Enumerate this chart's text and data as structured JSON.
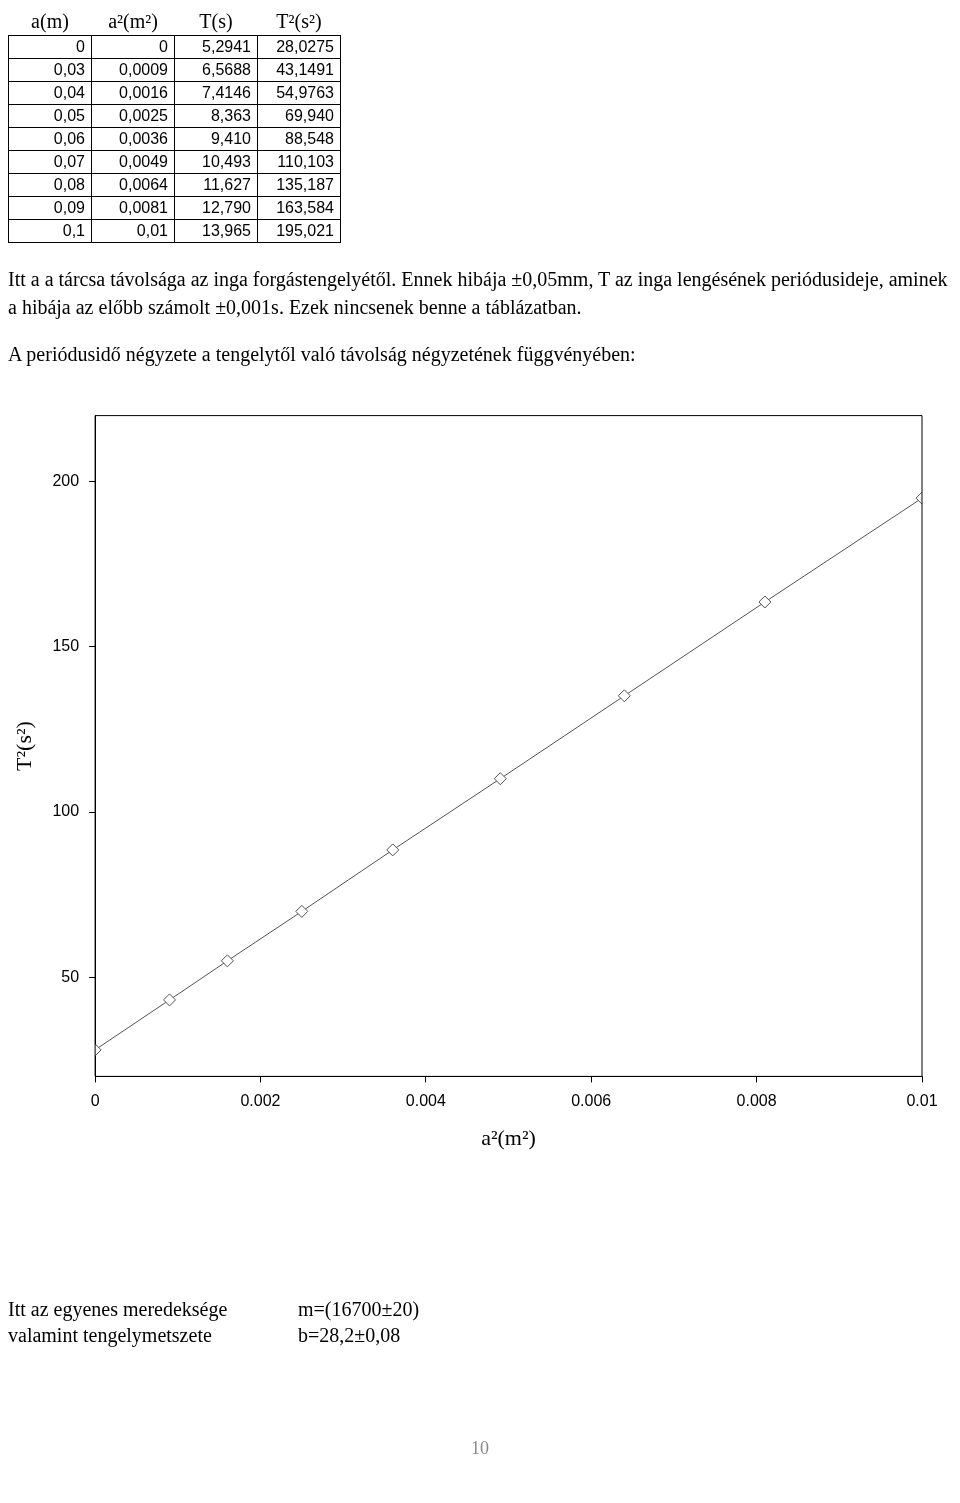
{
  "chart_data": {
    "type": "line",
    "title": "A periódusidő négyzete a tengelytől való távolság négyzetének függvényében:",
    "xlabel": "a²(m²)",
    "ylabel": "T²(s²)",
    "x": [
      0,
      0.0009,
      0.0016,
      0.0025,
      0.0036,
      0.0049,
      0.0064,
      0.0081,
      0.01
    ],
    "series": [
      {
        "color": "#555555",
        "values": [
          28.0275,
          43.1491,
          54.9763,
          69.94,
          88.548,
          110.103,
          135.187,
          163.584,
          195.021
        ]
      }
    ],
    "xlim": [
      0,
      0.01
    ],
    "xticks": [
      0,
      0.002,
      0.004,
      0.006,
      0.008,
      0.01
    ],
    "ylim": [
      20,
      220
    ],
    "yticks": [
      50,
      100,
      150,
      200
    ],
    "grid": false,
    "legend": false,
    "marker": "diamond",
    "line_style": "solid",
    "annotations": [
      "a(m)",
      "a²(m²)",
      "T(s)",
      "T²(s²)",
      "0",
      "0",
      "5,2941",
      "28,0275",
      "0,03",
      "0,0009",
      "6,5688",
      "43,1491",
      "0,04",
      "0,0016",
      "7,4146",
      "54,9763",
      "0,05",
      "0,0025",
      "8,363",
      "69,940",
      "0,06",
      "0,0036",
      "9,410",
      "88,548",
      "0,07",
      "0,0049",
      "10,493",
      "110,103",
      "0,08",
      "0,0064",
      "11,627",
      "135,187",
      "0,09",
      "0,0081",
      "12,790",
      "163,584",
      "0,1",
      "0,01",
      "13,965",
      "195,021",
      "Itt a a tárcsa távolsága az inga forgástengelyétől. Ennek hibája ±0,05mm, T az inga lengésének periódusideje, aminek a hibája az előbb számolt ±0,001s. Ezek nincsenek benne a táblázatban.",
      "Itt az egyenes meredeksége",
      "m=(16700±20)",
      "valamint tengelymetszete",
      "b=28,2±0,08",
      "10"
    ]
  }
}
